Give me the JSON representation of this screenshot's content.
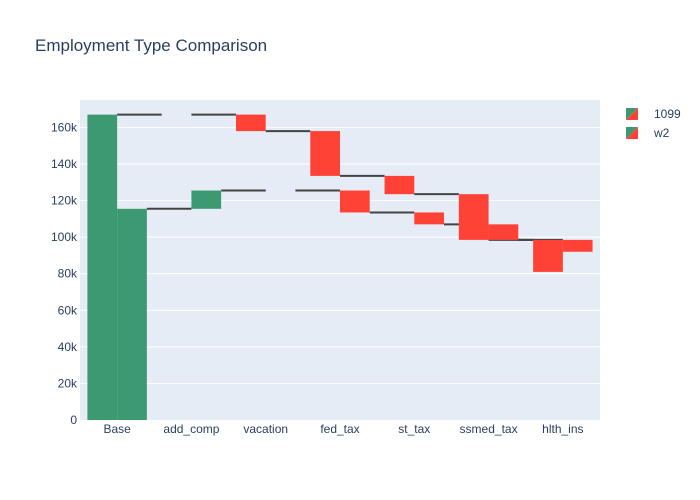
{
  "chart_data": {
    "type": "waterfall",
    "title": "Employment Type Comparison",
    "xlabel": "",
    "ylabel": "",
    "ylim": [
      0,
      175000
    ],
    "yticks": [
      0,
      20000,
      40000,
      60000,
      80000,
      100000,
      120000,
      140000,
      160000
    ],
    "ytick_labels": [
      "0",
      "20k",
      "40k",
      "60k",
      "80k",
      "100k",
      "120k",
      "140k",
      "160k"
    ],
    "grid": true,
    "legend_position": "top-right",
    "categories": [
      "Base",
      "add_comp",
      "vacation",
      "fed_tax",
      "st_tax",
      "ssmed_tax",
      "hlth_ins"
    ],
    "measures": [
      "absolute",
      "relative",
      "relative",
      "relative",
      "relative",
      "relative",
      "relative"
    ],
    "series": [
      {
        "name": "1099",
        "values": [
          167000,
          0,
          -9000,
          -24500,
          -10000,
          -25000,
          -17500
        ]
      },
      {
        "name": "w2",
        "values": [
          115500,
          10000,
          0,
          -12000,
          -6500,
          -8500,
          -6500
        ]
      }
    ],
    "colors": {
      "increasing": "#3d9970",
      "decreasing": "#ff4136",
      "connector": "#444444",
      "plot_bg": "#e5ecf6",
      "grid": "#ffffff",
      "text": "#2a3f5f"
    }
  }
}
